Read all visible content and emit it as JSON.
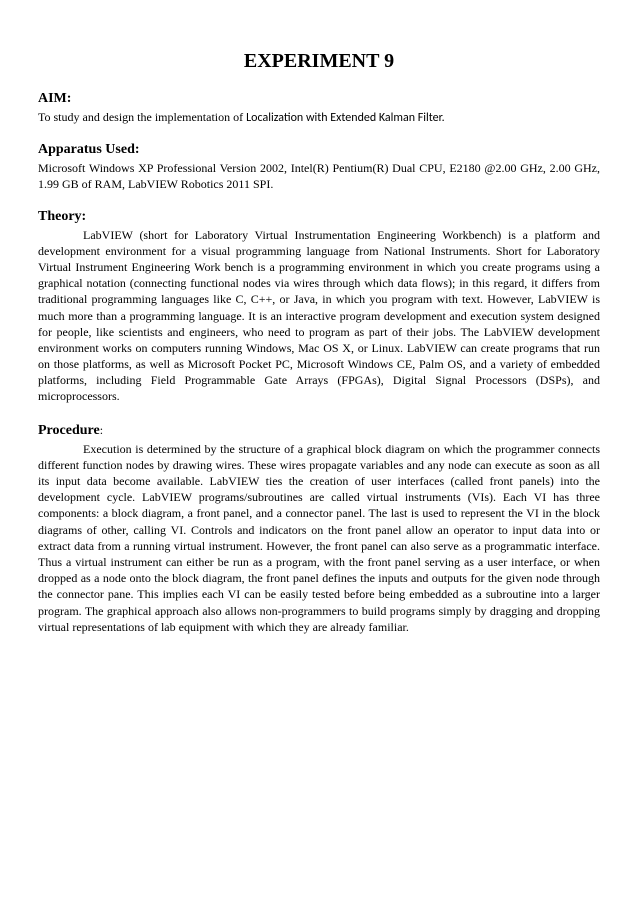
{
  "title": "EXPERIMENT 9",
  "sections": {
    "aim": {
      "heading": "AIM:",
      "text_prefix": "To study and design the implementation of ",
      "text_special": "Localization with Extended Kalman Filter."
    },
    "apparatus": {
      "heading": "Apparatus Used:",
      "text": "Microsoft Windows XP Professional Version 2002, Intel(R) Pentium(R) Dual CPU, E2180 @2.00 GHz, 2.00 GHz, 1.99 GB of RAM, LabVIEW Robotics 2011 SPI."
    },
    "theory": {
      "heading": "Theory:",
      "text": "LabVIEW (short for Laboratory Virtual Instrumentation Engineering Workbench) is a platform and development environment for a visual programming language from National Instruments. Short for Laboratory Virtual Instrument Engineering Work bench is a programming environment in which you create programs using a graphical notation (connecting functional nodes via wires through which data flows); in this regard, it differs from traditional programming languages like C, C++, or Java, in which you program with text. However, LabVIEW is much more than a programming language. It is an interactive program development and execution system designed for people, like scientists and engineers, who need to program as part of their jobs. The LabVIEW development environment works on computers running Windows, Mac OS X, or Linux. LabVIEW can create programs that run on those platforms, as well as Microsoft Pocket PC, Microsoft Windows CE, Palm OS, and a variety of embedded platforms, including Field Programmable Gate Arrays (FPGAs), Digital Signal Processors (DSPs), and microprocessors."
    },
    "procedure": {
      "heading": "Procedure",
      "colon": ":",
      "text": "Execution is determined by the structure of a graphical block diagram on which the programmer connects different function nodes by drawing wires. These wires propagate variables and any node can execute as soon as all its input data become available. LabVIEW ties the creation of user interfaces (called front panels) into the development cycle. LabVIEW programs/subroutines are called virtual instruments (VIs). Each VI has three components: a block diagram, a front panel, and a connector panel. The last is used to represent the VI in the block diagrams of other, calling VI. Controls and indicators on the front panel allow an operator to input data into or extract data from a running virtual instrument. However, the front panel can also serve as a programmatic interface. Thus a virtual instrument can either be run as a program, with the front panel serving as a user interface, or when dropped as a node onto the block diagram, the front panel defines the inputs and outputs for the given node through the connector pane. This implies each VI can be easily tested before being embedded as a subroutine into a larger program. The graphical approach also allows non-programmers to build programs simply by dragging and dropping virtual representations of lab equipment with which they are already familiar."
    }
  },
  "styles": {
    "title_fontsize": 20,
    "heading_fontsize": 14,
    "body_fontsize": 12,
    "text_color": "#000000",
    "background_color": "#ffffff",
    "font_family_main": "Times New Roman",
    "font_family_special": "Calibri"
  }
}
